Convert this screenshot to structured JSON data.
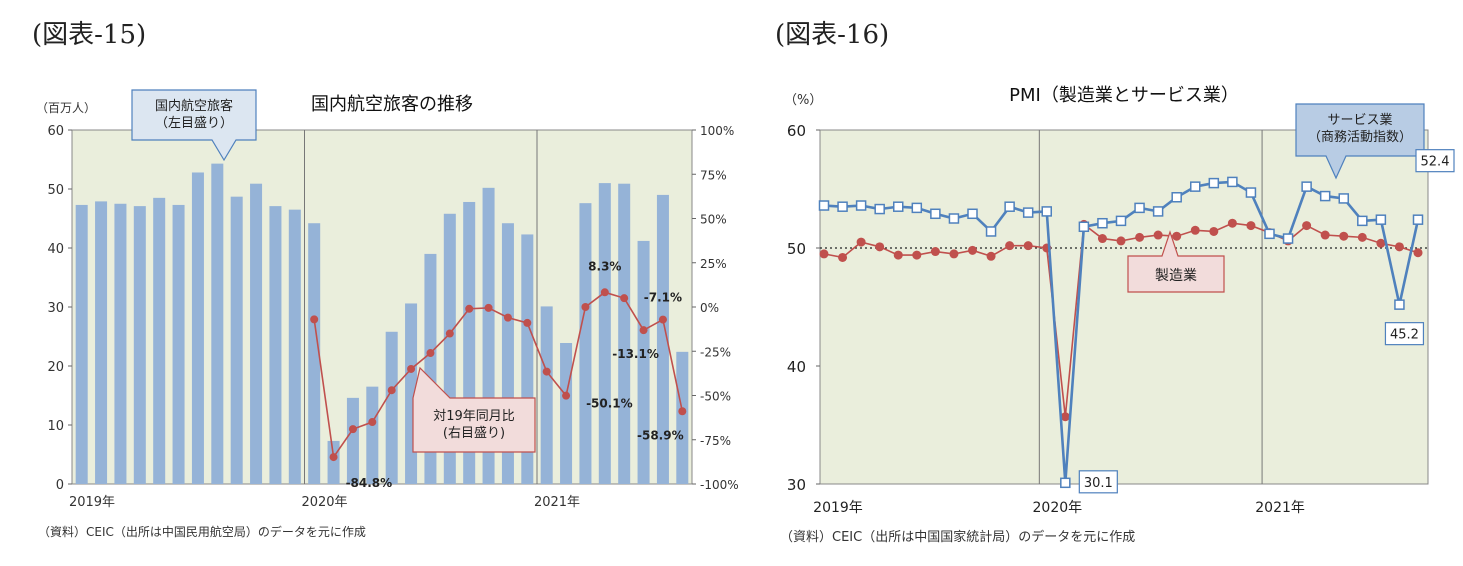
{
  "figures": [
    {
      "label": "(図表-15)",
      "source": "（資料）CEIC（出所は中国民用航空局）のデータを元に作成"
    },
    {
      "label": "(図表-16)",
      "source": "（資料）CEIC（出所は中国国家統計局）のデータを元に作成"
    }
  ],
  "colors": {
    "bar": "#95b3d7",
    "line_red": "#c0504d",
    "line_blue": "#4f81bd",
    "plot_bg": "#eaeedc"
  },
  "chart_data": [
    {
      "type": "bar",
      "title": "国内航空旅客の推移",
      "y_unit": "（百万人）",
      "ylim": [
        0,
        60
      ],
      "y_ticks": [
        "0",
        "10",
        "20",
        "30",
        "40",
        "50",
        "60"
      ],
      "y2lim": [
        -100,
        100
      ],
      "y2_ticks": [
        "-100%",
        "-75%",
        "-50%",
        "-25%",
        "0%",
        "25%",
        "50%",
        "75%",
        "100%"
      ],
      "x_tick_labels": [
        "2019年",
        "2020年",
        "2021年"
      ],
      "grid": false,
      "series": [
        {
          "name": "国内航空旅客（左目盛り）",
          "axis": "left",
          "type": "bar",
          "values": [
            47.3,
            47.9,
            47.5,
            47.1,
            48.5,
            47.3,
            52.8,
            54.3,
            48.7,
            50.9,
            47.1,
            46.5,
            44.2,
            7.3,
            14.6,
            16.5,
            25.8,
            30.6,
            39.0,
            45.8,
            47.8,
            50.2,
            44.2,
            42.3,
            30.1,
            23.9,
            47.6,
            51.0,
            50.9,
            41.2,
            49.0,
            22.4
          ]
        },
        {
          "name": "対19年同月比(右目盛り)",
          "axis": "right",
          "type": "line",
          "values": [
            null,
            null,
            null,
            null,
            null,
            null,
            null,
            null,
            null,
            null,
            null,
            null,
            -7,
            -84.8,
            -69,
            -65,
            -47,
            -35,
            -26,
            -15,
            -1,
            -0.5,
            -6,
            -9,
            -36.5,
            -50.1,
            0,
            8.3,
            5,
            -13.1,
            -7.1,
            -58.9
          ]
        }
      ],
      "callouts": [
        "国内航空旅客\n（左目盛り）",
        "対19年同月比\n(右目盛り)"
      ],
      "data_labels": [
        "-84.8%",
        "-50.1%",
        "8.3%",
        "-13.1%",
        "-7.1%",
        "-58.9%"
      ]
    },
    {
      "type": "line",
      "title": "PMI（製造業とサービス業）",
      "y_unit": "（%）",
      "ylim": [
        30,
        60
      ],
      "y_ticks": [
        "30",
        "40",
        "50",
        "60"
      ],
      "x_tick_labels": [
        "2019年",
        "2020年",
        "2021年"
      ],
      "reference_line": 50,
      "grid": false,
      "series": [
        {
          "name": "サービス業\n（商務活動指数）",
          "marker": "square",
          "values": [
            53.6,
            53.5,
            53.6,
            53.3,
            53.5,
            53.4,
            52.9,
            52.5,
            52.9,
            51.4,
            53.5,
            53.0,
            53.1,
            30.1,
            51.8,
            52.1,
            52.3,
            53.4,
            53.1,
            54.3,
            55.2,
            55.5,
            55.6,
            54.7,
            51.2,
            50.8,
            55.2,
            54.4,
            54.2,
            52.3,
            52.4,
            45.2,
            52.4
          ]
        },
        {
          "name": "製造業",
          "marker": "circle",
          "values": [
            49.5,
            49.2,
            50.5,
            50.1,
            49.4,
            49.4,
            49.7,
            49.5,
            49.8,
            49.3,
            50.2,
            50.2,
            50.0,
            35.7,
            52.0,
            50.8,
            50.6,
            50.9,
            51.1,
            51.0,
            51.5,
            51.4,
            52.1,
            51.9,
            51.3,
            50.6,
            51.9,
            51.1,
            51.0,
            50.9,
            50.4,
            50.1,
            49.6
          ]
        }
      ],
      "data_labels": [
        "30.1",
        "45.2",
        "52.4"
      ],
      "callouts": [
        "サービス業\n（商務活動指数）",
        "製造業"
      ]
    }
  ]
}
